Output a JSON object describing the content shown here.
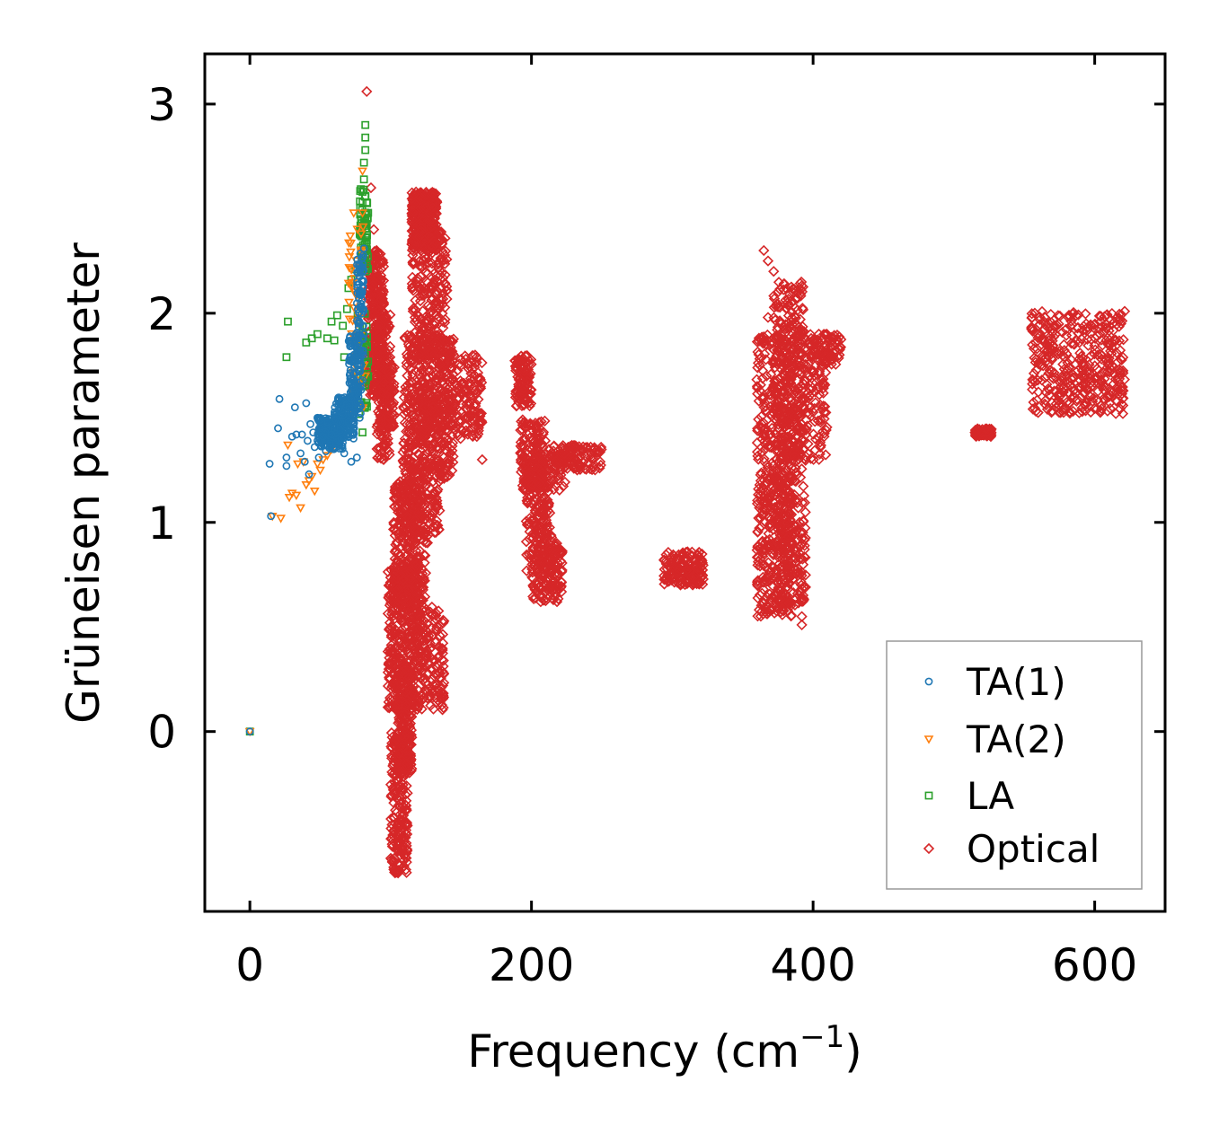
{
  "chart_data": {
    "type": "scatter",
    "xlabel": "Frequency (cm",
    "xlabel_sup": "−1",
    "xlabel_close": ")",
    "ylabel": "Grüneisen parameter",
    "xlim": [
      -32,
      650
    ],
    "ylim": [
      -0.86,
      3.24
    ],
    "xticks": [
      0,
      200,
      400,
      600
    ],
    "xtick_labels": [
      "0",
      "200",
      "400",
      "600"
    ],
    "yticks": [
      0,
      1,
      2,
      3
    ],
    "ytick_labels": [
      "0",
      "1",
      "2",
      "3"
    ],
    "legend_position": "lower-right",
    "series": [
      {
        "name": "TA(1)",
        "color": "#1f77b4",
        "marker": "circle",
        "points": [
          [
            0,
            0
          ],
          [
            15,
            1.03
          ],
          [
            14,
            1.28
          ],
          [
            20,
            1.45
          ],
          [
            21,
            1.59
          ],
          [
            26,
            1.27
          ],
          [
            26,
            1.31
          ],
          [
            30,
            1.41
          ],
          [
            32,
            1.55
          ],
          [
            33,
            1.42
          ],
          [
            36,
            1.33
          ],
          [
            37,
            1.42
          ],
          [
            39,
            1.29
          ],
          [
            40,
            1.57
          ],
          [
            41,
            1.39
          ],
          [
            42,
            1.23
          ],
          [
            43,
            1.47
          ],
          [
            45,
            1.43
          ],
          [
            46,
            1.36
          ],
          [
            48,
            1.5
          ],
          [
            49,
            1.31
          ],
          [
            50,
            1.45
          ],
          [
            52,
            1.41
          ],
          [
            54,
            1.34
          ],
          [
            55,
            1.48
          ],
          [
            57,
            1.38
          ],
          [
            58,
            1.42
          ],
          [
            60,
            1.46
          ],
          [
            61,
            1.38
          ],
          [
            62,
            1.52
          ],
          [
            64,
            1.44
          ],
          [
            65,
            1.4
          ],
          [
            66,
            1.51
          ],
          [
            67,
            1.33
          ],
          [
            68,
            1.55
          ],
          [
            69,
            1.42
          ],
          [
            70,
            1.48
          ],
          [
            71,
            1.6
          ],
          [
            72,
            1.29
          ],
          [
            72,
            1.52
          ],
          [
            73,
            1.65
          ],
          [
            74,
            1.45
          ],
          [
            74,
            1.71
          ],
          [
            75,
            1.57
          ],
          [
            76,
            1.8
          ],
          [
            76,
            1.31
          ],
          [
            77,
            1.88
          ],
          [
            77,
            1.62
          ],
          [
            78,
            1.95
          ],
          [
            78,
            1.5
          ],
          [
            79,
            2.03
          ],
          [
            79,
            1.75
          ],
          [
            80,
            2.12
          ],
          [
            80,
            1.68
          ],
          [
            80,
            2.22
          ],
          [
            81,
            2.31
          ],
          [
            81,
            1.9
          ]
        ],
        "bands": [
          [
            48,
            1.35,
            66,
            1.5,
            180
          ],
          [
            60,
            1.4,
            74,
            1.6,
            140
          ],
          [
            70,
            1.5,
            79,
            1.9,
            120
          ],
          [
            76,
            1.8,
            81,
            2.3,
            70
          ]
        ]
      },
      {
        "name": "TA(2)",
        "color": "#ff7f0e",
        "marker": "triangle",
        "points": [
          [
            0,
            0
          ],
          [
            16,
            1.03
          ],
          [
            22,
            1.02
          ],
          [
            27,
            1.37
          ],
          [
            28,
            1.12
          ],
          [
            30,
            1.14
          ],
          [
            33,
            1.13
          ],
          [
            34,
            1.28
          ],
          [
            36,
            1.07
          ],
          [
            38,
            1.29
          ],
          [
            40,
            1.18
          ],
          [
            42,
            1.2
          ],
          [
            44,
            1.22
          ],
          [
            46,
            1.15
          ],
          [
            48,
            1.28
          ],
          [
            50,
            1.25
          ],
          [
            52,
            1.3
          ],
          [
            55,
            1.32
          ],
          [
            58,
            1.35
          ],
          [
            62,
            1.4
          ],
          [
            66,
            1.48
          ],
          [
            70,
            1.55
          ],
          [
            73,
            1.62
          ],
          [
            75,
            1.75
          ],
          [
            76,
            1.95
          ],
          [
            77,
            2.1
          ],
          [
            78,
            2.22
          ],
          [
            79,
            2.38
          ],
          [
            80,
            2.48
          ],
          [
            80,
            2.68
          ],
          [
            81,
            1.75
          ],
          [
            82,
            1.7
          ]
        ],
        "bands": [
          [
            70,
            1.5,
            81,
            2.5,
            50
          ]
        ]
      },
      {
        "name": "LA",
        "color": "#2ca02c",
        "marker": "square",
        "points": [
          [
            0,
            0
          ],
          [
            26,
            1.79
          ],
          [
            27,
            1.96
          ],
          [
            40,
            1.86
          ],
          [
            44,
            1.88
          ],
          [
            48,
            1.9
          ],
          [
            55,
            1.88
          ],
          [
            58,
            1.96
          ],
          [
            60,
            1.87
          ],
          [
            62,
            1.99
          ],
          [
            66,
            1.94
          ],
          [
            67,
            1.79
          ],
          [
            69,
            2.02
          ],
          [
            70,
            2.12
          ],
          [
            72,
            2.16
          ],
          [
            75,
            2.21
          ],
          [
            78,
            2.38
          ],
          [
            79,
            2.45
          ],
          [
            80,
            2.53
          ],
          [
            80,
            2.58
          ],
          [
            81,
            2.64
          ],
          [
            81,
            2.72
          ],
          [
            82,
            2.78
          ],
          [
            82,
            2.84
          ],
          [
            82,
            2.9
          ],
          [
            83,
            2.53
          ],
          [
            84,
            2.48
          ],
          [
            80,
            1.65
          ],
          [
            82,
            1.7
          ],
          [
            84,
            1.7
          ],
          [
            80,
            1.43
          ]
        ],
        "bands": [
          [
            78,
            2.2,
            84,
            2.6,
            60
          ],
          [
            76,
            1.5,
            84,
            2.0,
            40
          ]
        ]
      },
      {
        "name": "Optical",
        "color": "#d62728",
        "marker": "diamond",
        "points": [
          [
            83,
            3.06
          ],
          [
            86,
            2.6
          ],
          [
            88,
            2.4
          ],
          [
            90,
            2.3
          ],
          [
            95,
            2.05
          ],
          [
            100,
            1.7
          ],
          [
            95,
            1.3
          ],
          [
            98,
            1.4
          ],
          [
            110,
            1.35
          ],
          [
            125,
            0.95
          ],
          [
            135,
            1.6
          ],
          [
            140,
            1.7
          ],
          [
            150,
            1.78
          ],
          [
            160,
            1.8
          ],
          [
            165,
            1.3
          ],
          [
            300,
            0.82
          ],
          [
            310,
            0.77
          ],
          [
            320,
            0.71
          ],
          [
            365,
            2.3
          ],
          [
            368,
            2.25
          ],
          [
            372,
            2.2
          ],
          [
            375,
            2.1
          ],
          [
            368,
            1.98
          ],
          [
            367,
            1.7
          ],
          [
            392,
            0.55
          ],
          [
            392,
            0.51
          ],
          [
            615,
            1.52
          ],
          [
            620,
            1.52
          ],
          [
            520,
            1.43
          ],
          [
            515,
            1.43
          ]
        ],
        "bands": [
          [
            84,
            1.6,
            95,
            2.3,
            280
          ],
          [
            90,
            1.3,
            100,
            2.0,
            150
          ],
          [
            92,
            1.45,
            103,
            1.75,
            100
          ],
          [
            115,
            2.3,
            133,
            2.58,
            320
          ],
          [
            115,
            1.8,
            140,
            2.4,
            220
          ],
          [
            110,
            1.2,
            145,
            1.9,
            300
          ],
          [
            120,
            1.4,
            165,
            1.82,
            250
          ],
          [
            108,
            0.9,
            135,
            1.6,
            250
          ],
          [
            102,
            0.6,
            125,
            1.2,
            320
          ],
          [
            98,
            0.1,
            120,
            0.8,
            400
          ],
          [
            105,
            -0.2,
            115,
            0.3,
            200
          ],
          [
            100,
            -0.68,
            112,
            0.0,
            220
          ],
          [
            120,
            0.1,
            138,
            0.6,
            150
          ],
          [
            188,
            1.55,
            200,
            1.8,
            100
          ],
          [
            192,
            1.15,
            210,
            1.5,
            150
          ],
          [
            200,
            1.15,
            225,
            1.35,
            80
          ],
          [
            215,
            1.25,
            250,
            1.37,
            120
          ],
          [
            196,
            0.75,
            215,
            1.2,
            150
          ],
          [
            200,
            0.62,
            222,
            0.9,
            150
          ],
          [
            294,
            0.7,
            322,
            0.86,
            160
          ],
          [
            360,
            0.55,
            385,
            1.9,
            500
          ],
          [
            372,
            0.6,
            395,
            2.15,
            450
          ],
          [
            385,
            1.3,
            410,
            1.92,
            150
          ],
          [
            398,
            1.75,
            420,
            1.9,
            80
          ],
          [
            515,
            1.41,
            527,
            1.45,
            70
          ],
          [
            555,
            1.52,
            622,
            2.01,
            400
          ]
        ]
      }
    ]
  }
}
